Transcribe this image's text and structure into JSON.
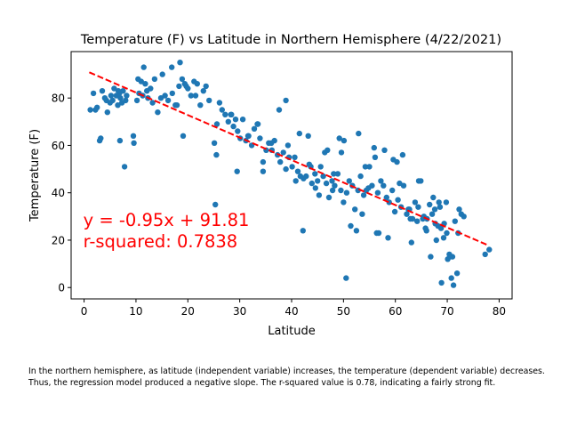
{
  "chart_data": {
    "type": "scatter",
    "title": "Temperature (F) vs Latitude in Northern Hemisphere (4/22/2021)",
    "xlabel": "Latitude",
    "ylabel": "Temperature (F)",
    "xlim": [
      -2.5,
      82.5
    ],
    "ylim": [
      -4.8,
      99.6
    ],
    "xticks": [
      "0",
      "10",
      "20",
      "30",
      "40",
      "50",
      "60",
      "70",
      "80"
    ],
    "yticks": [
      "0",
      "20",
      "40",
      "60",
      "80"
    ],
    "grid": false,
    "legend": "none",
    "marker_color": "#1f77b4",
    "series": [
      {
        "x": [
          1.2,
          1.8,
          2.5,
          3,
          3.5,
          4,
          4.5,
          5,
          5.5,
          5.8,
          6.2,
          6.5,
          6.8,
          7,
          7.5,
          8,
          2.2,
          3.2,
          4.3,
          5.2,
          6.6,
          7.3,
          8.2,
          9.6,
          10.2,
          10.6,
          11,
          11.3,
          11.8,
          12.3,
          12.8,
          13.2,
          13.6,
          14.2,
          15.1,
          15.6,
          16.2,
          17,
          17.6,
          18.3,
          18.9,
          19.4,
          20,
          20.6,
          21.2,
          21.8,
          22.4,
          23,
          10.4,
          12.1,
          14.8,
          16.9,
          19.7,
          21.5,
          23.5,
          24.1,
          25.1,
          25.6,
          26.1,
          26.6,
          27.2,
          27.8,
          28.3,
          28.8,
          29.2,
          29.6,
          30.1,
          30.6,
          31.2,
          31.7,
          32.3,
          32.8,
          33.4,
          33.9,
          34.5,
          35.1,
          35.6,
          36.2,
          36.7,
          37.3,
          37.8,
          38.4,
          38.9,
          39.5,
          40.1,
          40.6,
          41.2,
          41.7,
          42.3,
          42.8,
          43.4,
          43.9,
          44.5,
          45,
          45.6,
          46.1,
          46.7,
          47.2,
          47.8,
          48.3,
          48.9,
          49.5,
          50,
          50.6,
          51.1,
          51.7,
          52.2,
          52.8,
          53.3,
          53.9,
          54.4,
          55,
          55.5,
          56.1,
          56.6,
          57.2,
          57.7,
          58.3,
          58.8,
          59.4,
          59.9,
          60.5,
          61.1,
          61.6,
          62.2,
          62.7,
          63.3,
          63.8,
          64.4,
          64.9,
          65.5,
          66,
          66.6,
          67.1,
          67.7,
          68.2,
          68.8,
          69.3,
          69.9,
          70.4,
          71,
          71.5,
          72.1,
          72.7,
          73.2,
          7.8,
          6.9,
          9.5,
          18.5,
          25.3,
          29.5,
          34.5,
          42.2,
          50.5,
          55.9,
          60.3,
          64.5,
          67.9,
          70.5,
          71.9,
          19.1,
          17.9,
          25.5,
          11.5,
          28.4,
          31.6,
          33.5,
          37.6,
          38.9,
          40.8,
          43.7,
          48.1,
          49.2,
          50.1,
          53.6,
          56.4,
          58.6,
          61.4,
          62.5,
          65.3,
          66.8,
          67.6,
          68.4,
          69.4,
          70.8,
          72.3,
          77.3,
          78.1,
          44.6,
          46.4,
          47.9,
          51.4,
          52.5,
          54.8,
          57.9,
          59.6,
          63.1,
          66.1,
          68.9,
          70.1,
          71.2,
          36.1,
          39.3,
          41.5,
          43.2,
          45.3,
          46.9,
          49.6,
          52.9,
          54.2,
          56.8,
          60.8,
          62.9,
          64.2,
          65.8,
          67.3,
          68.6,
          69.8
        ],
        "y": [
          75,
          82,
          76,
          62,
          83,
          80,
          74,
          78,
          79,
          84,
          81,
          77,
          82,
          80,
          83,
          79,
          75,
          63,
          79,
          81,
          83,
          78,
          81,
          61,
          79,
          82,
          87,
          81,
          86,
          80,
          84,
          78,
          88,
          74,
          90,
          81,
          79,
          82,
          77,
          85,
          88,
          86,
          84,
          81,
          87,
          86,
          77,
          83,
          88,
          83,
          80,
          93,
          85,
          81,
          85,
          79,
          61,
          69,
          78,
          75,
          73,
          70,
          73,
          68,
          71,
          66,
          63,
          71,
          62,
          64,
          60,
          67,
          69,
          63,
          49,
          58,
          61,
          58,
          62,
          56,
          53,
          57,
          50,
          55,
          51,
          55,
          49,
          47,
          46,
          47,
          52,
          44,
          48,
          45,
          51,
          47,
          44,
          38,
          45,
          43,
          48,
          41,
          36,
          40,
          45,
          43,
          33,
          41,
          47,
          39,
          41,
          51,
          43,
          55,
          40,
          45,
          43,
          38,
          36,
          41,
          32,
          37,
          34,
          43,
          31,
          33,
          29,
          36,
          34,
          45,
          30,
          24,
          35,
          31,
          27,
          26,
          25,
          21,
          23,
          14,
          13,
          28,
          23,
          31,
          30,
          51,
          62,
          64,
          95,
          35,
          49,
          53,
          24,
          4,
          59,
          53,
          45,
          20,
          13,
          6,
          64,
          77,
          56,
          93,
          73,
          64,
          69,
          75,
          79,
          45,
          51,
          48,
          63,
          62,
          31,
          23,
          21,
          56,
          33,
          29,
          13,
          33,
          36,
          27,
          4,
          33,
          14,
          16,
          42,
          57,
          41,
          26,
          24,
          42,
          58,
          54,
          19,
          29,
          2,
          12,
          1,
          61,
          60,
          65,
          64,
          39,
          58,
          57,
          65,
          51,
          23,
          44,
          29,
          28,
          25,
          38,
          34,
          36
        ],
        "regression": {
          "slope": -0.95,
          "intercept": 91.81,
          "x_start": 1,
          "x_end": 78,
          "color": "#ff0000",
          "style": "dashed"
        }
      }
    ],
    "annotation": {
      "equation": "y = -0.95x + 91.81",
      "r_squared": "r-squared: 0.7838",
      "color": "#ff0000",
      "anchor_data": [
        0,
        26
      ]
    }
  },
  "caption": {
    "line1": "In the northern hemisphere, as latitude (independent variable) increases, the temperature (dependent variable) decreases.",
    "line2": "Thus, the regression model produced a negative slope. The r-squared value is 0.78, indicating a fairly strong fit."
  }
}
